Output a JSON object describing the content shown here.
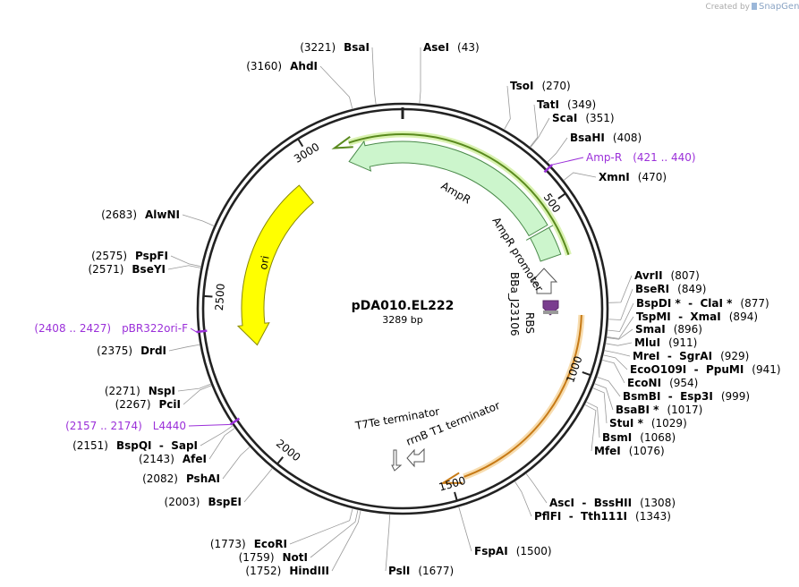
{
  "credit": {
    "prefix": "Created by",
    "brand": "SnapGene"
  },
  "plasmid": {
    "name": "pDA010.EL222",
    "length": "3289 bp"
  },
  "ticks": [
    500,
    1000,
    1500,
    2000,
    2500,
    3000
  ],
  "features": {
    "ampr": "AmpR",
    "ampr_promoter": "AmpR promoter",
    "promoter": "BBa_J23106",
    "rbs": "RBS",
    "ori": "ori",
    "t7te": "T7Te terminator",
    "rrnb": "rrnB T1 terminator"
  },
  "primers": [
    {
      "name": "Amp-R",
      "range": "(421 .. 440)"
    },
    {
      "name": "pBR322ori-F",
      "range": "(2408 .. 2427)"
    },
    {
      "name": "L4440",
      "range": "(2157 .. 2174)"
    }
  ],
  "sites": [
    {
      "name": "BsaI",
      "position": "(3221)"
    },
    {
      "name": "AseI",
      "position": "(43)"
    },
    {
      "name": "AhdI",
      "position": "(3160)"
    },
    {
      "name": "TsoI",
      "position": "(270)"
    },
    {
      "name": "TatI",
      "position": "(349)"
    },
    {
      "name": "ScaI",
      "position": "(351)"
    },
    {
      "name": "BsaHI",
      "position": "(408)"
    },
    {
      "name": "XmnI",
      "position": "(470)"
    },
    {
      "name": "AlwNI",
      "position": "(2683)"
    },
    {
      "name": "PspFI",
      "position": "(2575)"
    },
    {
      "name": "BseYI",
      "position": "(2571)"
    },
    {
      "name": "DrdI",
      "position": "(2375)"
    },
    {
      "name": "NspI",
      "position": "(2271)"
    },
    {
      "name": "PciI",
      "position": "(2267)"
    },
    {
      "name": "BspQI  -  SapI",
      "position": "(2151)"
    },
    {
      "name": "AfeI",
      "position": "(2143)"
    },
    {
      "name": "PshAI",
      "position": "(2082)"
    },
    {
      "name": "BspEI",
      "position": "(2003)"
    },
    {
      "name": "EcoRI",
      "position": "(1773)"
    },
    {
      "name": "NotI",
      "position": "(1759)"
    },
    {
      "name": "HindIII",
      "position": "(1752)"
    },
    {
      "name": "PslI",
      "position": "(1677)"
    },
    {
      "name": "FspAI",
      "position": "(1500)"
    },
    {
      "name": "AscI  -  BssHII",
      "position": "(1308)"
    },
    {
      "name": "PflFI  -  Tth111I",
      "position": "(1343)"
    },
    {
      "name": "MfeI",
      "position": "(1076)"
    },
    {
      "name": "BsmI",
      "position": "(1068)"
    },
    {
      "name": "StuI *",
      "position": "(1029)"
    },
    {
      "name": "BsaBI *",
      "position": "(1017)"
    },
    {
      "name": "BsmBI  -  Esp3I",
      "position": "(999)"
    },
    {
      "name": "EcoNI",
      "position": "(954)"
    },
    {
      "name": "EcoO109I  -  PpuMI",
      "position": "(941)"
    },
    {
      "name": "MreI  -  SgrAI",
      "position": "(929)"
    },
    {
      "name": "MluI",
      "position": "(911)"
    },
    {
      "name": "SmaI",
      "position": "(896)"
    },
    {
      "name": "TspMI  -  XmaI",
      "position": "(894)"
    },
    {
      "name": "BspDI *  -  ClaI *",
      "position": "(877)"
    },
    {
      "name": "BseRI",
      "position": "(849)"
    },
    {
      "name": "AvrII",
      "position": "(807)"
    }
  ]
}
